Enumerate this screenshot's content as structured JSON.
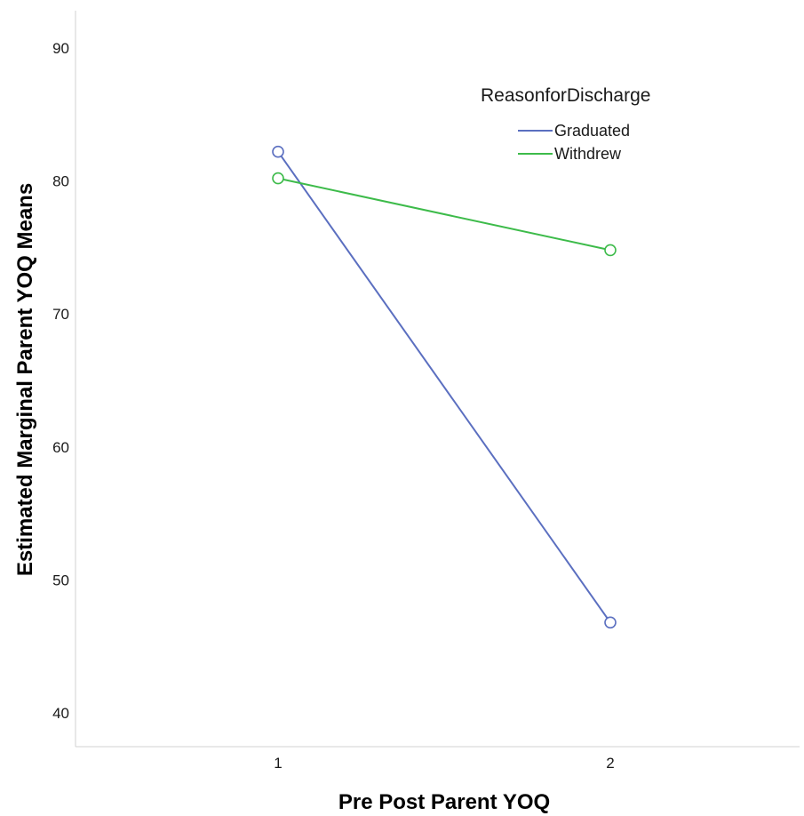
{
  "chart_data": {
    "type": "line",
    "title": "",
    "xlabel": "Pre Post Parent YOQ",
    "ylabel": "Estimated Marginal Parent YOQ Means",
    "x": [
      "1",
      "2"
    ],
    "ylim": [
      38,
      92
    ],
    "yticks": [
      40,
      50,
      60,
      70,
      80,
      90
    ],
    "grid": false,
    "legend": {
      "title": "ReasonforDischarge",
      "placement": "top-right"
    },
    "series": [
      {
        "name": "Graduated",
        "color": "#5b6fc0",
        "marker": "circle-open",
        "values": [
          82.2,
          46.8
        ]
      },
      {
        "name": "Withdrew",
        "color": "#3dbb4a",
        "marker": "circle-open",
        "values": [
          80.2,
          74.8
        ]
      }
    ]
  }
}
